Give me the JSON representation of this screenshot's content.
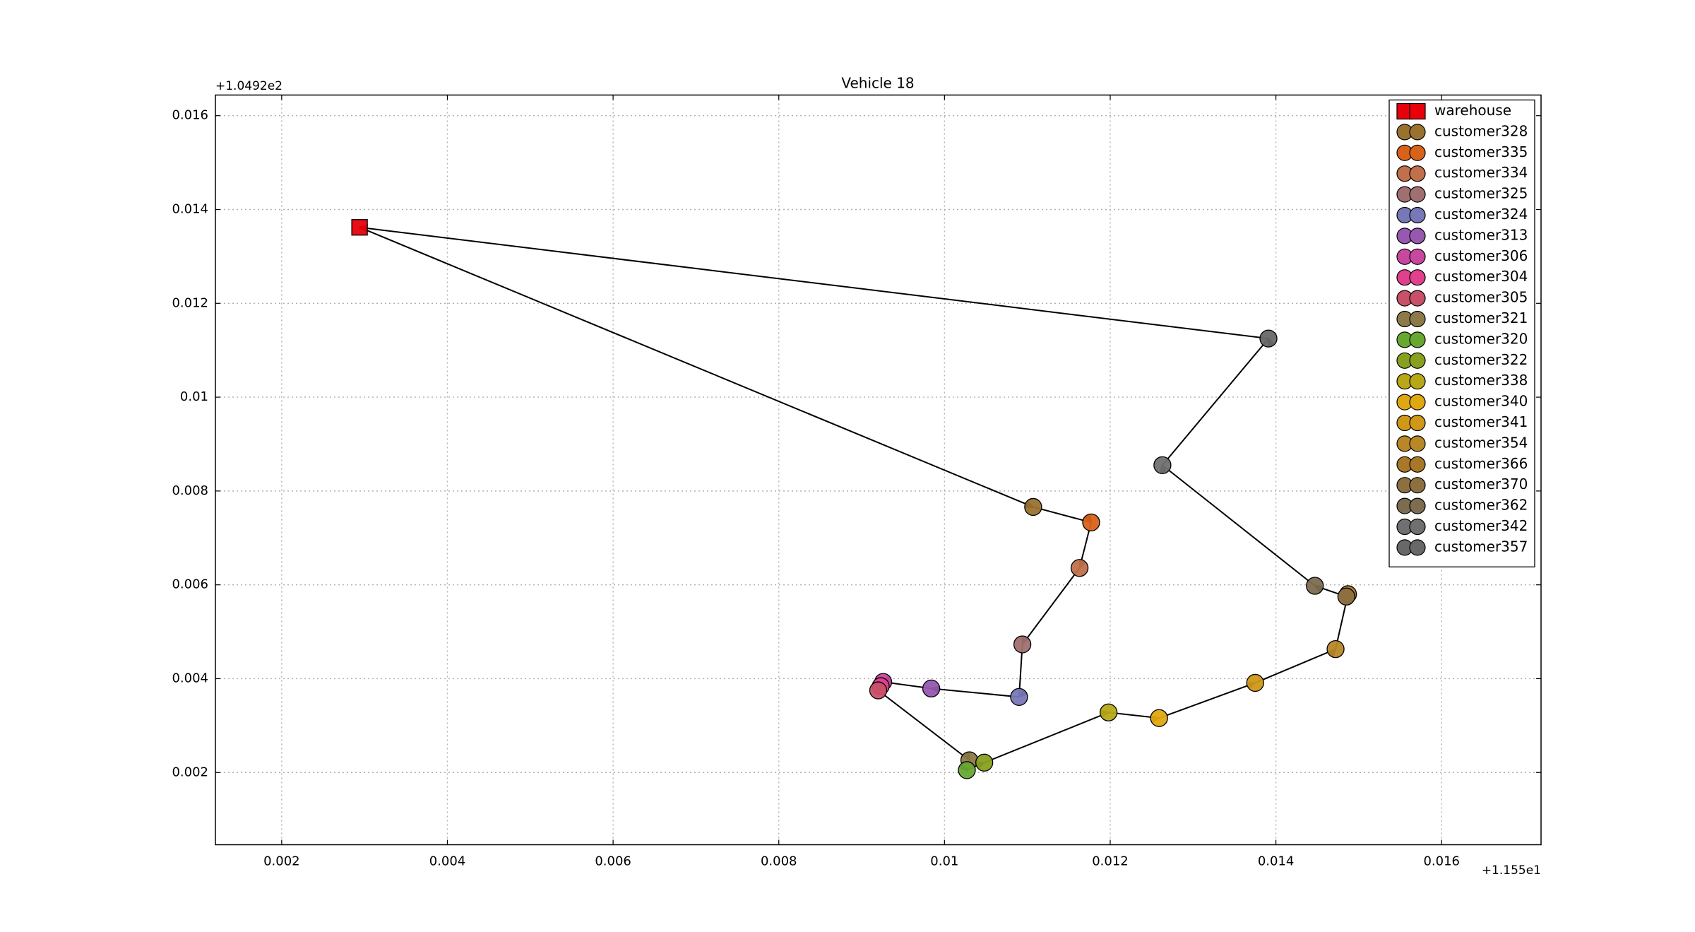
{
  "chart_data": {
    "type": "scatter",
    "title": "Vehicle 18",
    "x_offset_label": "+1.155e1",
    "y_offset_label": "+1.0492e2",
    "xlim": [
      0.0012,
      0.0172
    ],
    "ylim": [
      0.00046,
      0.01644
    ],
    "xticks": [
      0.002,
      0.004,
      0.006,
      0.008,
      0.01,
      0.012,
      0.014,
      0.016
    ],
    "yticks": [
      0.002,
      0.004,
      0.006,
      0.008,
      0.01,
      0.012,
      0.014,
      0.016
    ],
    "grid": true,
    "legend": "upper right",
    "route": true,
    "series": [
      {
        "name": "warehouse",
        "color": "#e8000b",
        "marker": "square",
        "x": [
          0.00294
        ],
        "y": [
          0.01362
        ]
      },
      {
        "name": "customer328",
        "color": "#9a7230",
        "x": [
          0.01107
        ],
        "y": [
          0.00766
        ]
      },
      {
        "name": "customer335",
        "color": "#d9621a",
        "x": [
          0.01177
        ],
        "y": [
          0.00733
        ]
      },
      {
        "name": "customer334",
        "color": "#c0704a",
        "x": [
          0.01163
        ],
        "y": [
          0.00636
        ]
      },
      {
        "name": "customer325",
        "color": "#a07070",
        "x": [
          0.01094
        ],
        "y": [
          0.00473
        ]
      },
      {
        "name": "customer324",
        "color": "#7878b8",
        "x": [
          0.0109
        ],
        "y": [
          0.00361
        ]
      },
      {
        "name": "customer313",
        "color": "#9858b0",
        "x": [
          0.00984
        ],
        "y": [
          0.00379
        ]
      },
      {
        "name": "customer306",
        "color": "#c848a0",
        "x": [
          0.00926
        ],
        "y": [
          0.00393
        ]
      },
      {
        "name": "customer304",
        "color": "#e0408c",
        "x": [
          0.00923
        ],
        "y": [
          0.00384
        ]
      },
      {
        "name": "customer305",
        "color": "#c85068",
        "x": [
          0.0092
        ],
        "y": [
          0.00375
        ]
      },
      {
        "name": "customer321",
        "color": "#8c7a48",
        "x": [
          0.0103
        ],
        "y": [
          0.00226
        ]
      },
      {
        "name": "customer320",
        "color": "#68a830",
        "x": [
          0.01027
        ],
        "y": [
          0.00205
        ]
      },
      {
        "name": "customer322",
        "color": "#88a020",
        "x": [
          0.01048
        ],
        "y": [
          0.00221
        ]
      },
      {
        "name": "customer338",
        "color": "#b8a818",
        "x": [
          0.01198
        ],
        "y": [
          0.00328
        ]
      },
      {
        "name": "customer340",
        "color": "#e0a810",
        "x": [
          0.01259
        ],
        "y": [
          0.00316
        ]
      },
      {
        "name": "customer341",
        "color": "#d09818",
        "x": [
          0.01375
        ],
        "y": [
          0.00391
        ]
      },
      {
        "name": "customer354",
        "color": "#b88828",
        "x": [
          0.01472
        ],
        "y": [
          0.00463
        ]
      },
      {
        "name": "customer366",
        "color": "#a87828",
        "x": [
          0.01487
        ],
        "y": [
          0.0058
        ]
      },
      {
        "name": "customer370",
        "color": "#8c7040",
        "x": [
          0.01485
        ],
        "y": [
          0.00575
        ]
      },
      {
        "name": "customer362",
        "color": "#7c6c50",
        "x": [
          0.01447
        ],
        "y": [
          0.00598
        ]
      },
      {
        "name": "customer342",
        "color": "#707070",
        "x": [
          0.01263
        ],
        "y": [
          0.00855
        ]
      },
      {
        "name": "customer357",
        "color": "#686868",
        "x": [
          0.01391
        ],
        "y": [
          0.01125
        ]
      }
    ]
  }
}
